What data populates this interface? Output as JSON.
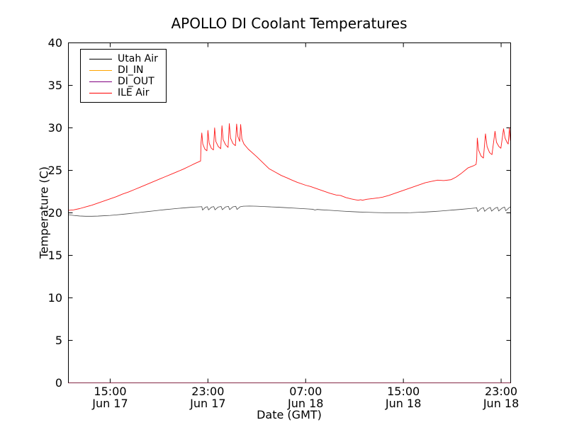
{
  "chart_data": {
    "type": "line",
    "title": "APOLLO DI Coolant Temperatures",
    "xlabel": "Date (GMT)",
    "ylabel": "Temperature (C)",
    "x_unit_note": "hours since Jun 17 00:00 GMT",
    "x_range": [
      11.58,
      47.78
    ],
    "y_range": [
      0,
      40
    ],
    "y_ticks": [
      0,
      5,
      10,
      15,
      20,
      25,
      30,
      35,
      40
    ],
    "x_ticks": [
      {
        "t": 15,
        "time": "15:00",
        "date": "Jun 17"
      },
      {
        "t": 23,
        "time": "23:00",
        "date": "Jun 17"
      },
      {
        "t": 31,
        "time": "07:00",
        "date": "Jun 18"
      },
      {
        "t": 39,
        "time": "15:00",
        "date": "Jun 18"
      },
      {
        "t": 47,
        "time": "23:00",
        "date": "Jun 18"
      }
    ],
    "grid": false,
    "legend_position": "upper left",
    "series": [
      {
        "name": "Utah Air",
        "color": "#000000",
        "width": 0.8,
        "opacity": 0.72,
        "points": [
          [
            11.58,
            19.78
          ],
          [
            12,
            19.7
          ],
          [
            12.5,
            19.63
          ],
          [
            13,
            19.6
          ],
          [
            13.5,
            19.6
          ],
          [
            14,
            19.62
          ],
          [
            14.5,
            19.66
          ],
          [
            15,
            19.7
          ],
          [
            15.5,
            19.76
          ],
          [
            16,
            19.83
          ],
          [
            16.5,
            19.9
          ],
          [
            17,
            19.98
          ],
          [
            17.5,
            20.06
          ],
          [
            18,
            20.14
          ],
          [
            18.5,
            20.22
          ],
          [
            19,
            20.3
          ],
          [
            19.5,
            20.38
          ],
          [
            20,
            20.45
          ],
          [
            20.5,
            20.52
          ],
          [
            21,
            20.58
          ],
          [
            21.5,
            20.64
          ],
          [
            22,
            20.69
          ],
          [
            22.4,
            20.72
          ],
          [
            22.5,
            20.73
          ],
          [
            22.56,
            20.33
          ],
          [
            22.8,
            20.66
          ],
          [
            22.95,
            20.73
          ],
          [
            23.05,
            20.35
          ],
          [
            23.3,
            20.68
          ],
          [
            23.48,
            20.74
          ],
          [
            23.58,
            20.36
          ],
          [
            23.85,
            20.69
          ],
          [
            24.08,
            20.75
          ],
          [
            24.18,
            20.37
          ],
          [
            24.45,
            20.7
          ],
          [
            24.68,
            20.76
          ],
          [
            24.78,
            20.38
          ],
          [
            25.05,
            20.71
          ],
          [
            25.28,
            20.77
          ],
          [
            25.38,
            20.4
          ],
          [
            25.65,
            20.72
          ],
          [
            25.9,
            20.78
          ],
          [
            26.4,
            20.8
          ],
          [
            27,
            20.78
          ],
          [
            27.6,
            20.74
          ],
          [
            28.2,
            20.7
          ],
          [
            28.8,
            20.66
          ],
          [
            29.4,
            20.61
          ],
          [
            30,
            20.56
          ],
          [
            30.6,
            20.51
          ],
          [
            31.2,
            20.46
          ],
          [
            31.6,
            20.42
          ],
          [
            31.75,
            20.33
          ],
          [
            31.95,
            20.4
          ],
          [
            32.3,
            20.36
          ],
          [
            33,
            20.3
          ],
          [
            33.6,
            20.24
          ],
          [
            34.2,
            20.19
          ],
          [
            34.8,
            20.14
          ],
          [
            35.4,
            20.1
          ],
          [
            36,
            20.07
          ],
          [
            36.6,
            20.04
          ],
          [
            37.2,
            20.02
          ],
          [
            37.8,
            20.0
          ],
          [
            38.4,
            20.0
          ],
          [
            39,
            20.0
          ],
          [
            39.6,
            20.02
          ],
          [
            40.2,
            20.06
          ],
          [
            40.8,
            20.1
          ],
          [
            41.4,
            20.15
          ],
          [
            42,
            20.21
          ],
          [
            42.6,
            20.28
          ],
          [
            43.2,
            20.35
          ],
          [
            43.8,
            20.42
          ],
          [
            44.4,
            20.5
          ],
          [
            44.9,
            20.57
          ],
          [
            45.0,
            20.6
          ],
          [
            45.08,
            20.15
          ],
          [
            45.35,
            20.5
          ],
          [
            45.55,
            20.62
          ],
          [
            45.65,
            20.18
          ],
          [
            45.92,
            20.52
          ],
          [
            46.12,
            20.64
          ],
          [
            46.22,
            20.2
          ],
          [
            46.5,
            20.54
          ],
          [
            46.7,
            20.66
          ],
          [
            46.8,
            20.22
          ],
          [
            47.08,
            20.56
          ],
          [
            47.28,
            20.68
          ],
          [
            47.38,
            20.24
          ],
          [
            47.65,
            20.6
          ],
          [
            47.78,
            20.72
          ]
        ]
      },
      {
        "name": "DI_IN",
        "color": "#ffa500",
        "width": 1.0,
        "opacity": 0.85,
        "points": [
          [
            11.58,
            0
          ],
          [
            47.78,
            0
          ]
        ]
      },
      {
        "name": "DI_OUT",
        "color": "#800080",
        "width": 1.0,
        "opacity": 0.75,
        "points": [
          [
            11.58,
            0
          ],
          [
            47.78,
            0
          ]
        ]
      },
      {
        "name": "ILE Air",
        "color": "#ff0000",
        "width": 0.9,
        "opacity": 0.9,
        "points": [
          [
            11.58,
            20.3
          ],
          [
            12,
            20.35
          ],
          [
            12.5,
            20.5
          ],
          [
            13,
            20.7
          ],
          [
            13.5,
            20.9
          ],
          [
            14,
            21.15
          ],
          [
            14.5,
            21.4
          ],
          [
            15,
            21.65
          ],
          [
            15.5,
            21.9
          ],
          [
            16,
            22.2
          ],
          [
            16.5,
            22.45
          ],
          [
            17,
            22.75
          ],
          [
            17.5,
            23.05
          ],
          [
            18,
            23.35
          ],
          [
            18.5,
            23.65
          ],
          [
            19,
            23.95
          ],
          [
            19.5,
            24.25
          ],
          [
            20,
            24.55
          ],
          [
            20.5,
            24.85
          ],
          [
            21,
            25.15
          ],
          [
            21.5,
            25.5
          ],
          [
            22,
            25.85
          ],
          [
            22.4,
            26.1
          ],
          [
            22.44,
            28.3
          ],
          [
            22.5,
            29.4
          ],
          [
            22.58,
            28.1
          ],
          [
            22.75,
            27.5
          ],
          [
            22.92,
            27.3
          ],
          [
            23.0,
            29.7
          ],
          [
            23.1,
            28.2
          ],
          [
            23.28,
            27.6
          ],
          [
            23.45,
            27.4
          ],
          [
            23.55,
            30.0
          ],
          [
            23.65,
            28.4
          ],
          [
            23.85,
            27.8
          ],
          [
            24.05,
            27.55
          ],
          [
            24.15,
            30.25
          ],
          [
            24.25,
            28.6
          ],
          [
            24.45,
            28.0
          ],
          [
            24.65,
            27.7
          ],
          [
            24.75,
            30.5
          ],
          [
            24.85,
            28.8
          ],
          [
            25.05,
            28.15
          ],
          [
            25.25,
            27.9
          ],
          [
            25.35,
            30.45
          ],
          [
            25.45,
            29.0
          ],
          [
            25.6,
            28.4
          ],
          [
            25.68,
            30.4
          ],
          [
            25.78,
            28.7
          ],
          [
            25.95,
            28.1
          ],
          [
            26.3,
            27.5
          ],
          [
            27,
            26.6
          ],
          [
            27.5,
            25.9
          ],
          [
            28,
            25.2
          ],
          [
            28.5,
            24.8
          ],
          [
            29,
            24.4
          ],
          [
            29.5,
            24.1
          ],
          [
            29.8,
            23.9
          ],
          [
            30.3,
            23.6
          ],
          [
            31,
            23.25
          ],
          [
            31.4,
            23.1
          ],
          [
            32,
            22.8
          ],
          [
            32.5,
            22.55
          ],
          [
            33,
            22.3
          ],
          [
            33.5,
            22.1
          ],
          [
            33.85,
            22.05
          ],
          [
            34.3,
            21.8
          ],
          [
            34.7,
            21.65
          ],
          [
            35.05,
            21.55
          ],
          [
            35.3,
            21.48
          ],
          [
            35.5,
            21.55
          ],
          [
            35.65,
            21.48
          ],
          [
            36,
            21.6
          ],
          [
            36.5,
            21.68
          ],
          [
            37,
            21.78
          ],
          [
            37.3,
            21.85
          ],
          [
            37.8,
            22.05
          ],
          [
            38.3,
            22.3
          ],
          [
            38.8,
            22.55
          ],
          [
            39.3,
            22.8
          ],
          [
            39.8,
            23.05
          ],
          [
            40.3,
            23.3
          ],
          [
            40.8,
            23.55
          ],
          [
            41.3,
            23.7
          ],
          [
            41.8,
            23.85
          ],
          [
            42.3,
            23.8
          ],
          [
            42.9,
            23.9
          ],
          [
            43.3,
            24.2
          ],
          [
            43.7,
            24.6
          ],
          [
            44.3,
            25.3
          ],
          [
            44.75,
            25.55
          ],
          [
            44.95,
            25.7
          ],
          [
            45.0,
            26.3
          ],
          [
            45.05,
            28.8
          ],
          [
            45.15,
            27.4
          ],
          [
            45.35,
            26.7
          ],
          [
            45.55,
            26.45
          ],
          [
            45.72,
            29.3
          ],
          [
            45.85,
            27.8
          ],
          [
            46.05,
            27.1
          ],
          [
            46.25,
            26.85
          ],
          [
            46.5,
            29.6
          ],
          [
            46.62,
            28.3
          ],
          [
            46.82,
            27.8
          ],
          [
            46.98,
            27.6
          ],
          [
            47.2,
            29.9
          ],
          [
            47.32,
            28.8
          ],
          [
            47.5,
            28.25
          ],
          [
            47.58,
            28.1
          ],
          [
            47.68,
            30.0
          ],
          [
            47.75,
            28.6
          ],
          [
            47.78,
            28.4
          ]
        ]
      }
    ]
  }
}
